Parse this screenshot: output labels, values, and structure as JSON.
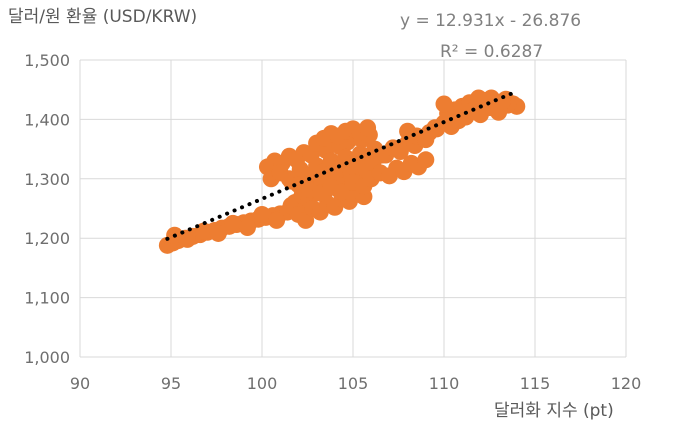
{
  "chart_data": {
    "type": "scatter",
    "ylabel": "달러/원 환율 (USD/KRW)",
    "xlabel": "달러화 지수 (pt)",
    "xlim": [
      90,
      120
    ],
    "ylim": [
      1000,
      1500
    ],
    "x_ticks": [
      90,
      95,
      100,
      105,
      110,
      115,
      120
    ],
    "y_ticks": [
      1000,
      1100,
      1200,
      1300,
      1400,
      1500
    ],
    "y_tick_labels": [
      "1,000",
      "1,100",
      "1,200",
      "1,300",
      "1,400",
      "1,500"
    ],
    "grid": true,
    "trendline": {
      "slope": 12.931,
      "intercept": -26.876,
      "x_range": [
        94.8,
        114.0
      ],
      "equation_text": "y = 12.931x - 26.876",
      "r2_text": "R² = 0.6287",
      "color": "#000000"
    },
    "point_color": "#ED7D31",
    "series": [
      {
        "x": [
          94.8,
          95.1,
          95.4,
          95.8,
          96.2,
          96.6,
          97.0,
          97.4,
          97.8,
          98.2,
          98.6,
          99.0,
          99.4,
          99.8,
          100.2,
          100.6,
          101.0,
          101.4,
          101.8,
          102.2,
          95.2,
          95.9,
          96.8,
          97.6,
          98.4,
          99.2,
          100.0,
          100.8,
          101.6,
          102.4,
          100.3,
          100.7,
          101.1,
          101.5,
          101.9,
          102.3,
          102.7,
          103.1,
          103.5,
          103.9,
          104.3,
          104.7,
          105.1,
          105.5,
          105.9,
          100.5,
          101.0,
          101.6,
          102.1,
          102.6,
          103.0,
          103.4,
          103.8,
          104.2,
          104.6,
          105.0,
          105.4,
          105.8,
          106.2,
          106.6,
          101.8,
          102.2,
          102.6,
          103.0,
          103.4,
          103.8,
          104.2,
          104.6,
          105.0,
          105.4,
          102.0,
          102.4,
          102.8,
          103.2,
          103.6,
          104.0,
          104.4,
          104.8,
          105.2,
          105.6,
          102.5,
          102.9,
          103.3,
          103.7,
          104.1,
          104.5,
          104.9,
          105.3,
          105.7,
          106.1,
          103.0,
          103.4,
          103.8,
          104.2,
          104.6,
          105.0,
          105.4,
          105.8,
          101.5,
          102.0,
          102.6,
          103.2,
          103.8,
          104.4,
          105.0,
          105.6,
          106.0,
          106.5,
          107.0,
          107.4,
          107.8,
          108.2,
          108.6,
          109.0,
          106.8,
          107.2,
          107.6,
          108.0,
          108.4,
          108.8,
          108.0,
          108.5,
          109.0,
          109.5,
          110.0,
          110.4,
          110.8,
          111.2,
          109.2,
          109.6,
          110.2,
          110.6,
          111.0,
          111.4,
          111.8,
          112.2,
          112.6,
          113.0,
          113.4,
          113.8,
          114.0,
          110.0,
          111.5,
          112.0,
          112.5,
          113.0,
          113.5,
          112.8,
          113.2,
          111.9
        ],
        "y": [
          1188,
          1192,
          1196,
          1200,
          1203,
          1206,
          1210,
          1213,
          1217,
          1220,
          1223,
          1226,
          1229,
          1232,
          1235,
          1238,
          1241,
          1244,
          1247,
          1250,
          1205,
          1198,
          1212,
          1208,
          1225,
          1218,
          1240,
          1230,
          1255,
          1245,
          1320,
          1330,
          1326,
          1338,
          1332,
          1344,
          1340,
          1352,
          1348,
          1358,
          1354,
          1362,
          1370,
          1366,
          1374,
          1300,
          1310,
          1296,
          1316,
          1306,
          1322,
          1312,
          1330,
          1318,
          1336,
          1326,
          1342,
          1334,
          1350,
          1340,
          1260,
          1272,
          1266,
          1280,
          1274,
          1288,
          1282,
          1294,
          1290,
          1298,
          1240,
          1230,
          1250,
          1244,
          1258,
          1252,
          1266,
          1262,
          1274,
          1270,
          1290,
          1300,
          1296,
          1308,
          1302,
          1316,
          1310,
          1322,
          1318,
          1328,
          1360,
          1368,
          1376,
          1372,
          1380,
          1384,
          1378,
          1386,
          1300,
          1290,
          1282,
          1276,
          1286,
          1278,
          1294,
          1288,
          1300,
          1310,
          1305,
          1318,
          1312,
          1326,
          1320,
          1332,
          1340,
          1352,
          1346,
          1360,
          1356,
          1368,
          1380,
          1372,
          1366,
          1386,
          1394,
          1388,
          1398,
          1404,
          1378,
          1384,
          1410,
          1416,
          1422,
          1428,
          1424,
          1432,
          1436,
          1428,
          1434,
          1426,
          1422,
          1426,
          1414,
          1408,
          1420,
          1412,
          1424,
          1418,
          1430,
          1436
        ]
      }
    ]
  }
}
